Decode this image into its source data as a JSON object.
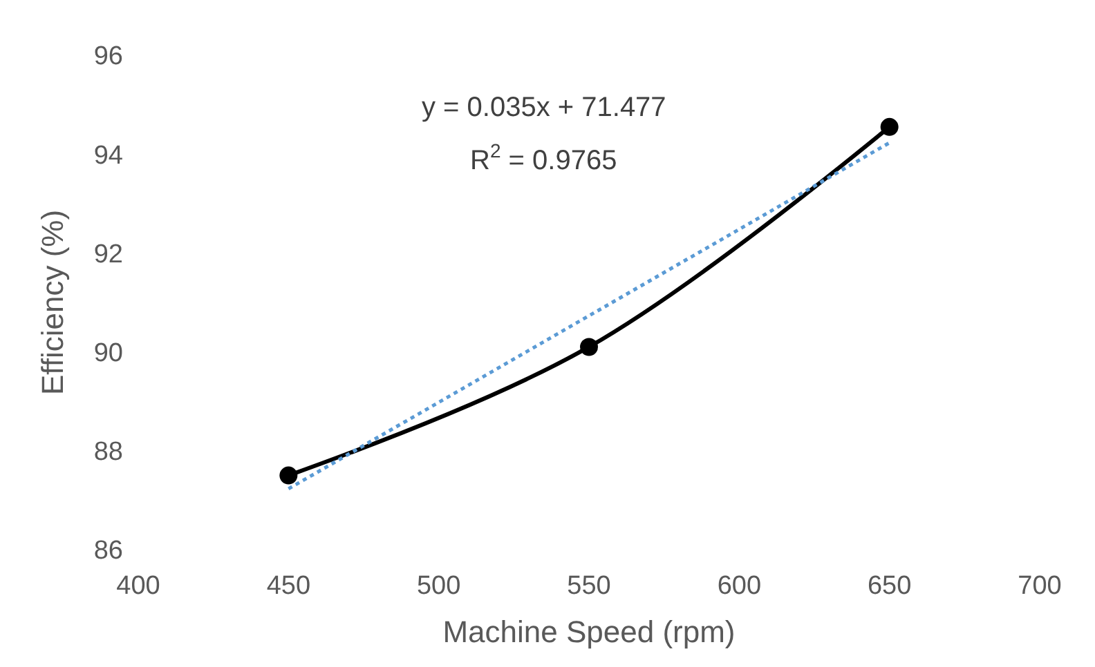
{
  "chart_data": {
    "type": "line",
    "xlabel": "Machine Speed (rpm)",
    "ylabel": "Efficiency (%)",
    "x": [
      450,
      550,
      650
    ],
    "series": [
      {
        "color": "#000000",
        "values": [
          87.5,
          90.1,
          94.55
        ],
        "marker": "circle",
        "line_style": "solid"
      },
      {
        "type": "line",
        "x": [
          450,
          650
        ],
        "color": "#5b9bd5",
        "values": [
          87.23,
          94.23
        ],
        "marker": "none",
        "line_style": "dotted"
      }
    ],
    "xlim": [
      400,
      700
    ],
    "xticks": [
      400,
      450,
      500,
      550,
      600,
      650,
      700
    ],
    "ylim": [
      86,
      96
    ],
    "yticks": [
      86,
      88,
      90,
      92,
      94,
      96
    ],
    "annotations": [
      "y = 0.035x + 71.477",
      "R$^{2}$ = 0.9765"
    ]
  }
}
